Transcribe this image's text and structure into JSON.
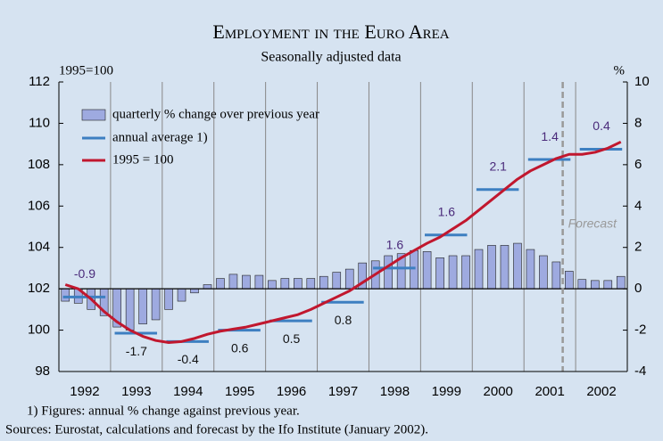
{
  "chart_data": {
    "type": "bar",
    "title": "Employment in the Euro Area",
    "subtitle": "Seasonally adjusted data",
    "ylabel": "1995=100",
    "y2label": "%",
    "categories": [
      "1992",
      "1993",
      "1994",
      "1995",
      "1996",
      "1997",
      "1998",
      "1999",
      "2000",
      "2001",
      "2002"
    ],
    "series": [
      {
        "name": "quarterly % change over previous year",
        "type": "bar",
        "axis": "y2",
        "color": "#9eaae0",
        "values": [
          [
            -0.6,
            -0.7,
            -1.0,
            -1.3
          ],
          [
            -1.85,
            -2.0,
            -1.7,
            -1.5
          ],
          [
            -1.0,
            -0.6,
            -0.2,
            0.2
          ],
          [
            0.5,
            0.7,
            0.65,
            0.65
          ],
          [
            0.4,
            0.5,
            0.5,
            0.5
          ],
          [
            0.6,
            0.8,
            0.95,
            1.25
          ],
          [
            1.35,
            1.6,
            1.7,
            1.85
          ],
          [
            1.8,
            1.5,
            1.6,
            1.6
          ],
          [
            1.9,
            2.1,
            2.1,
            2.2
          ],
          [
            1.9,
            1.6,
            1.3,
            0.85
          ],
          [
            0.45,
            0.4,
            0.4,
            0.6
          ]
        ]
      },
      {
        "name": "annual average 1)",
        "type": "hline",
        "axis": "y",
        "color": "#3d7fc1",
        "values": [
          101.6,
          99.85,
          99.45,
          100.0,
          100.45,
          101.35,
          103.0,
          104.6,
          106.8,
          108.25,
          108.75
        ],
        "value_labels": [
          "-0.9",
          "-1.7",
          "-0.4",
          "0.6",
          "0.5",
          "0.8",
          "1.6",
          "1.6",
          "2.1",
          "1.4",
          "0.4"
        ]
      },
      {
        "name": "1995 = 100",
        "type": "line",
        "axis": "y",
        "color": "#c1172e",
        "values": [
          [
            102.2,
            102.0,
            101.5,
            100.9
          ],
          [
            100.4,
            100.0,
            99.7,
            99.5
          ],
          [
            99.4,
            99.45,
            99.6,
            99.8
          ],
          [
            99.95,
            100.05,
            100.15,
            100.3
          ],
          [
            100.45,
            100.6,
            100.75,
            101.0
          ],
          [
            101.3,
            101.6,
            101.9,
            102.3
          ],
          [
            102.7,
            103.1,
            103.5,
            103.85
          ],
          [
            104.2,
            104.5,
            104.9,
            105.3
          ],
          [
            105.8,
            106.3,
            106.8,
            107.3
          ],
          [
            107.7,
            108.0,
            108.3,
            108.5
          ],
          [
            108.5,
            108.6,
            108.8,
            109.1
          ]
        ]
      }
    ],
    "ylim": [
      98,
      112
    ],
    "yticks": [
      98,
      100,
      102,
      104,
      106,
      108,
      110,
      112
    ],
    "y2lim": [
      -4,
      10
    ],
    "y2ticks": [
      -4,
      -2,
      0,
      2,
      4,
      6,
      8,
      10
    ],
    "forecast_label": "Forecast",
    "footnote": "1) Figures: annual % change against previous year.",
    "source": "Sources: Eurostat, calculations and forecast by the Ifo Institute (January 2002)."
  }
}
